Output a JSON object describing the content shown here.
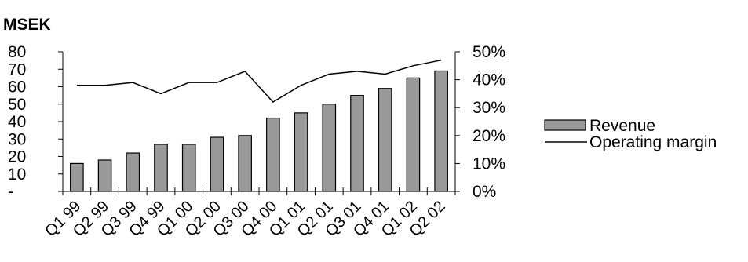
{
  "chart_data": {
    "type": "bar+line",
    "title": "MSEK",
    "categories": [
      "Q1 99",
      "Q2 99",
      "Q3 99",
      "Q4 99",
      "Q1 00",
      "Q2 00",
      "Q3 00",
      "Q4 00",
      "Q1 01",
      "Q2 01",
      "Q3 01",
      "Q4 01",
      "Q1 02",
      "Q2 02"
    ],
    "series": [
      {
        "name": "Revenue",
        "type": "bar",
        "axis": "left",
        "color": "#999999",
        "values": [
          16,
          18,
          22,
          27,
          27,
          31,
          32,
          42,
          45,
          50,
          55,
          59,
          65,
          69
        ]
      },
      {
        "name": "Operating margin",
        "type": "line",
        "axis": "right",
        "color": "#000000",
        "values": [
          0.38,
          0.38,
          0.39,
          0.35,
          0.39,
          0.39,
          0.43,
          0.32,
          0.38,
          0.42,
          0.43,
          0.42,
          0.45,
          0.47
        ]
      }
    ],
    "y_left": {
      "min": 0,
      "max": 80,
      "ticks": [
        0,
        10,
        20,
        30,
        40,
        50,
        60,
        70,
        80
      ],
      "tick_labels": [
        "-",
        "10",
        "20",
        "30",
        "40",
        "50",
        "60",
        "70",
        "80"
      ]
    },
    "y_right": {
      "min": 0,
      "max": 0.5,
      "ticks": [
        0,
        0.1,
        0.2,
        0.3,
        0.4,
        0.5
      ],
      "tick_labels": [
        "0%",
        "10%",
        "20%",
        "30%",
        "40%",
        "50%"
      ]
    },
    "grid": false,
    "legend_position": "right"
  }
}
